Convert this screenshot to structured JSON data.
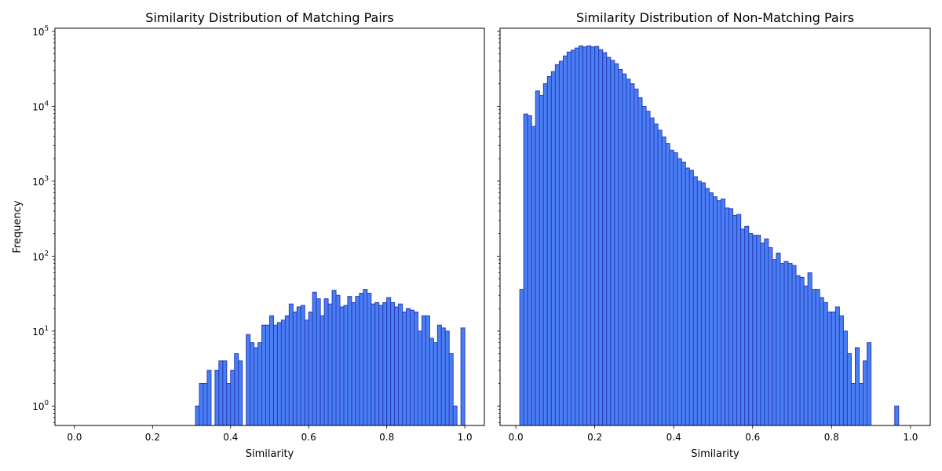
{
  "style": {
    "bar_fill": "#4a7ef5",
    "bar_edge": "#2a3fb5"
  },
  "chart_data": [
    {
      "type": "bar",
      "title": "Similarity Distribution of Matching Pairs",
      "xlabel": "Similarity",
      "ylabel": "Frequency",
      "yscale": "log",
      "xlim": [
        -0.05,
        1.05
      ],
      "ylim": [
        0.55,
        110000
      ],
      "xticks": [
        "0.0",
        "0.2",
        "0.4",
        "0.6",
        "0.8",
        "1.0"
      ],
      "yticks": [
        {
          "base": "10",
          "exp": "0"
        },
        {
          "base": "10",
          "exp": "1"
        },
        {
          "base": "10",
          "exp": "2"
        },
        {
          "base": "10",
          "exp": "3"
        },
        {
          "base": "10",
          "exp": "4"
        },
        {
          "base": "10",
          "exp": "5"
        }
      ],
      "grid": false,
      "bin_start": 0.0,
      "bin_width": 0.01,
      "values": [
        0,
        0,
        0,
        0,
        0,
        0,
        0,
        0,
        0,
        0,
        0,
        0,
        0,
        0,
        0,
        0,
        0,
        0,
        0,
        0,
        0,
        0,
        0,
        0,
        0,
        0,
        0,
        0,
        0,
        0,
        0,
        1,
        2,
        2,
        3,
        0,
        3,
        4,
        4,
        2,
        3,
        5,
        4,
        0,
        9,
        7,
        6,
        7,
        12,
        12,
        16,
        12,
        13,
        14,
        16,
        23,
        18,
        21,
        22,
        14,
        18,
        33,
        27,
        16,
        27,
        23,
        35,
        30,
        21,
        22,
        29,
        24,
        29,
        32,
        36,
        32,
        23,
        24,
        22,
        24,
        28,
        24,
        21,
        23,
        18,
        20,
        19,
        18,
        10,
        16,
        16,
        8,
        7,
        12,
        11,
        10,
        5,
        1,
        0,
        11
      ]
    },
    {
      "type": "bar",
      "title": "Similarity Distribution of Non-Matching Pairs",
      "xlabel": "Similarity",
      "ylabel": "",
      "yscale": "log",
      "xlim": [
        -0.04,
        1.05
      ],
      "ylim": [
        0.55,
        110000
      ],
      "xticks": [
        "0.0",
        "0.2",
        "0.4",
        "0.6",
        "0.8",
        "1.0"
      ],
      "yticks": [],
      "grid": false,
      "bin_start": 0.01,
      "bin_width": 0.01,
      "values": [
        36,
        7900,
        7500,
        5400,
        16000,
        14000,
        20000,
        25000,
        29000,
        36000,
        40000,
        47000,
        53000,
        56000,
        60000,
        64000,
        62000,
        64000,
        62000,
        63000,
        57000,
        52000,
        45000,
        41000,
        37000,
        31000,
        27000,
        23000,
        20000,
        17000,
        13000,
        10000,
        8600,
        7000,
        5800,
        4800,
        3900,
        3200,
        2600,
        2400,
        2000,
        1800,
        1500,
        1400,
        1150,
        1000,
        950,
        800,
        700,
        620,
        550,
        580,
        440,
        430,
        350,
        360,
        230,
        250,
        200,
        190,
        190,
        150,
        170,
        130,
        90,
        110,
        80,
        85,
        80,
        75,
        55,
        52,
        40,
        60,
        36,
        36,
        28,
        24,
        18,
        18,
        21,
        16,
        10,
        5,
        2,
        6,
        2,
        4,
        7,
        0,
        0,
        0,
        0,
        0,
        0,
        1
      ]
    }
  ]
}
